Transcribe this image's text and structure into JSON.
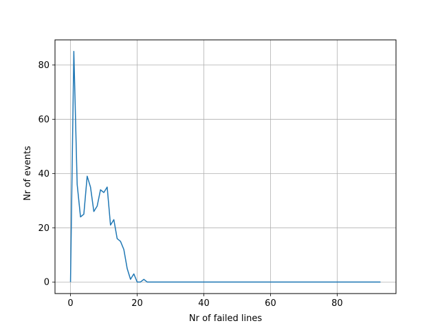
{
  "chart_data": {
    "type": "line",
    "title": "",
    "xlabel": "Nr of failed lines",
    "ylabel": "Nr of events",
    "xlim": [
      -4.65,
      97.65
    ],
    "ylim": [
      -4.25,
      89.25
    ],
    "grid": true,
    "xticks": [
      0,
      20,
      40,
      60,
      80
    ],
    "yticks": [
      0,
      20,
      40,
      60,
      80
    ],
    "colors": {
      "line": "#1f77b4",
      "grid": "#b0b0b0",
      "axes": "#000000"
    },
    "series": [
      {
        "x": [
          0,
          1,
          2,
          3,
          4,
          5,
          6,
          7,
          8,
          9,
          10,
          11,
          12,
          13,
          14,
          15,
          16,
          17,
          18,
          19,
          20,
          21,
          22,
          23,
          24,
          25,
          26,
          27,
          28,
          29,
          30,
          31,
          32,
          33,
          34,
          35,
          36,
          37,
          38,
          39,
          40,
          41,
          42,
          43,
          44,
          45,
          46,
          47,
          48,
          49,
          50,
          51,
          52,
          53,
          54,
          55,
          56,
          57,
          58,
          59,
          60,
          61,
          62,
          63,
          64,
          65,
          66,
          67,
          68,
          69,
          70,
          71,
          72,
          73,
          74,
          75,
          76,
          77,
          78,
          79,
          80,
          81,
          82,
          83,
          84,
          85,
          86,
          87,
          88,
          89,
          90,
          91,
          92,
          93
        ],
        "y": [
          0,
          85,
          36,
          24,
          25,
          39,
          35,
          26,
          28,
          34,
          33,
          35,
          21,
          23,
          16,
          15,
          12,
          5,
          1,
          3,
          0,
          0,
          1,
          0,
          0,
          0,
          0,
          0,
          0,
          0,
          0,
          0,
          0,
          0,
          0,
          0,
          0,
          0,
          0,
          0,
          0,
          0,
          0,
          0,
          0,
          0,
          0,
          0,
          0,
          0,
          0,
          0,
          0,
          0,
          0,
          0,
          0,
          0,
          0,
          0,
          0,
          0,
          0,
          0,
          0,
          0,
          0,
          0,
          0,
          0,
          0,
          0,
          0,
          0,
          0,
          0,
          0,
          0,
          0,
          0,
          0,
          0,
          0,
          0,
          0,
          0,
          0,
          0,
          0,
          0,
          0,
          0,
          0,
          0
        ]
      }
    ]
  }
}
